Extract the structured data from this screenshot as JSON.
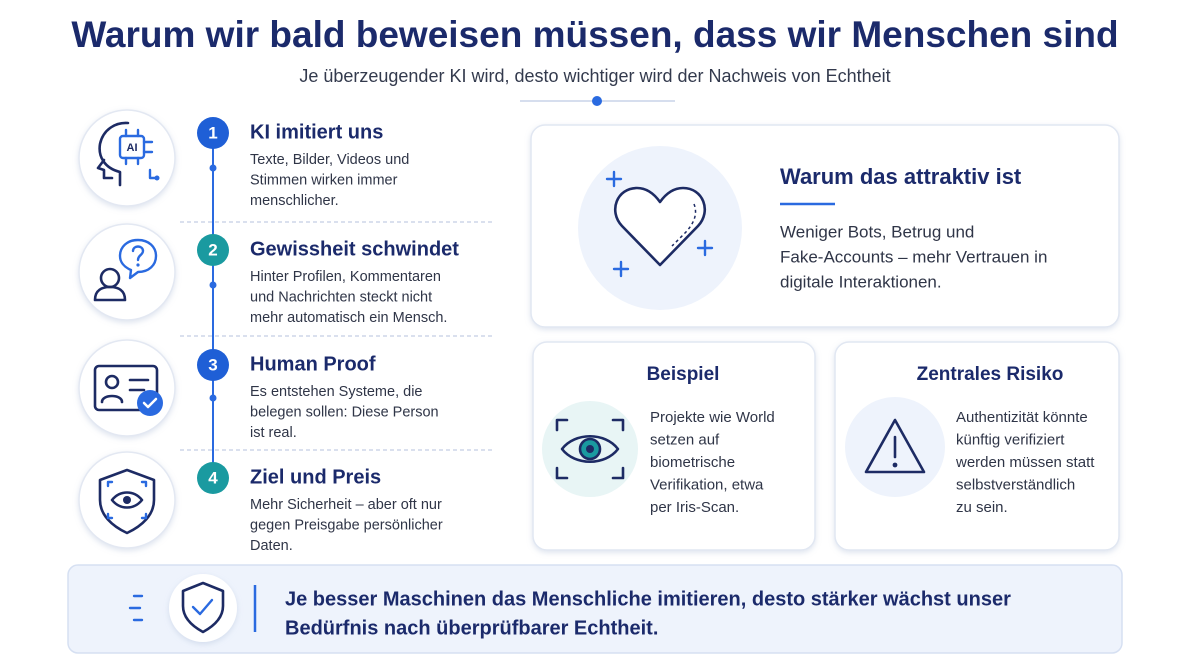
{
  "header": {
    "title": "Warum wir bald beweisen müssen, dass wir Menschen sind",
    "subtitle": "Je überzeugender KI wird, desto wichtiger wird der Nachweis von Echtheit"
  },
  "steps": [
    {
      "number": 1,
      "title": "KI imitiert uns",
      "icon_label": "AI",
      "lines": [
        "Texte, Bilder, Videos und",
        "Stimmen wirken immer",
        "menschlicher."
      ]
    },
    {
      "number": 2,
      "title": "Gewissheit schwindet",
      "lines": [
        "Hinter Profilen, Kommentaren",
        "und Nachrichten steckt nicht",
        "mehr automatisch ein Mensch."
      ]
    },
    {
      "number": 3,
      "title": "Human Proof",
      "lines": [
        "Es entstehen Systeme, die",
        "belegen sollen: Diese Person",
        "ist real."
      ]
    },
    {
      "number": 4,
      "title": "Ziel und Preis",
      "lines": [
        "Mehr Sicherheit – aber oft nur",
        "gegen Preisgabe persönlicher",
        "Daten."
      ]
    }
  ],
  "highlight": {
    "title": "Warum das attraktiv ist",
    "lines": [
      "Weniger Bots, Betrug und",
      "Fake-Accounts – mehr Vertrauen in",
      "digitale Interaktionen."
    ]
  },
  "example": {
    "title": "Beispiel",
    "lines": [
      "Projekte wie World",
      "setzen auf",
      "biometrische",
      "Verifikation, etwa",
      "per Iris-Scan."
    ]
  },
  "risk": {
    "title": "Zentrales Risiko",
    "lines": [
      "Authentizität könnte",
      "künftig verifiziert",
      "werden müssen statt",
      "selbstverständlich",
      "zu sein."
    ]
  },
  "footer": {
    "lines": [
      "Je besser Maschinen das Menschliche imitieren, desto stärker wächst unser",
      "Bedürfnis nach überprüfbarer Echtheit."
    ]
  }
}
